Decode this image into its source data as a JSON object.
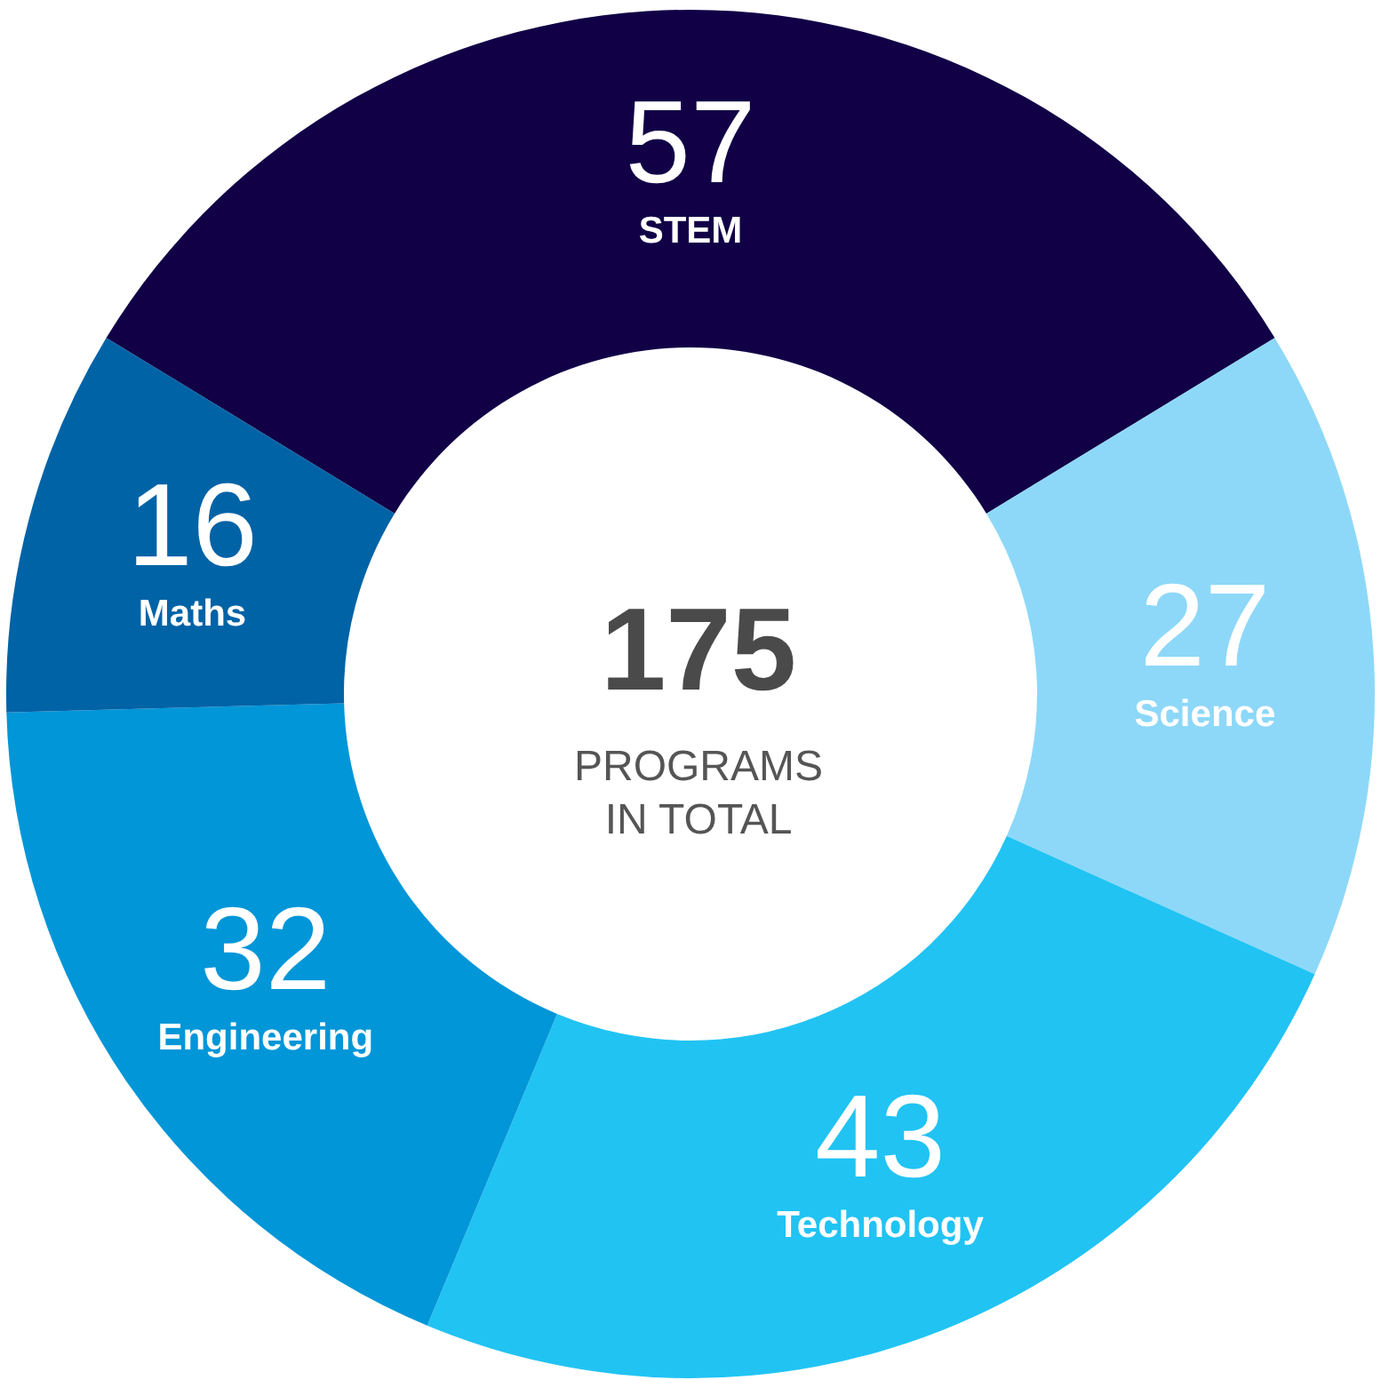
{
  "chart_data": {
    "type": "donut",
    "categories": [
      "STEM",
      "Science",
      "Technology",
      "Engineering",
      "Maths"
    ],
    "values": [
      57,
      27,
      43,
      32,
      16
    ],
    "colors": [
      "#110046",
      "#8dd8f8",
      "#21c3f3",
      "#0096d8",
      "#0063a6"
    ],
    "data_labels": true,
    "annotations": [
      "175",
      "PROGRAMS IN TOTAL"
    ]
  }
}
